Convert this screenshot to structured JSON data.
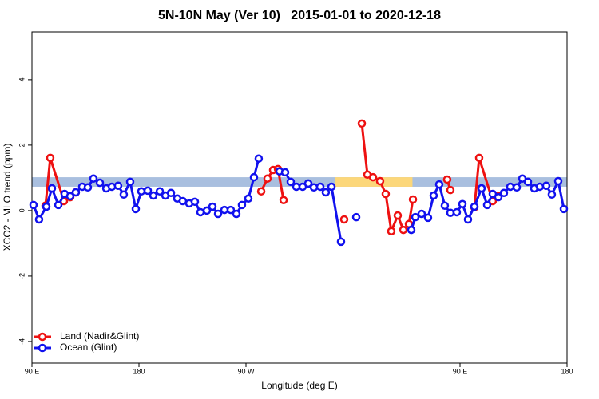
{
  "chart_data": {
    "type": "line",
    "title": "5N-10N May (Ver 10)   2015-01-01 to 2020-12-18",
    "x_label": "Longitude (deg E)",
    "y_label": "XCO2 - MLO trend (ppm)",
    "xlim": [
      90,
      540
    ],
    "ylim": [
      -4.66,
      5.46
    ],
    "xticks": [
      {
        "value": 90,
        "label": "90 E"
      },
      {
        "value": 180,
        "label": "180"
      },
      {
        "value": 270,
        "label": "90 W"
      },
      {
        "value": 450,
        "label": "90 E"
      },
      {
        "value": 540,
        "label": "180"
      }
    ],
    "yticks": [
      -4,
      -2,
      0,
      2,
      4
    ],
    "band_range": [
      0.73,
      1.02
    ],
    "band_color": "#a9bfdf",
    "band_highlight": [
      345,
      410
    ],
    "band_highlight_color": "#fcd77a",
    "legend": "bottom-left",
    "series": [
      {
        "name": "Land (Nadir&Glint)",
        "color": "#ee1111",
        "x": [
          101.4,
          105.4,
          116.9,
          122.2,
          126.9,
          200,
          282.8,
          288.1,
          292.8,
          296.9,
          301.6,
          330,
          352.6,
          360,
          367.4,
          372.1,
          376.8,
          382.8,
          387.5,
          392.2,
          397.6,
          402.3,
          407.0,
          410.4,
          425,
          439.2,
          441.9,
          450,
          462.1,
          466.1,
          477.5,
          482.2
        ],
        "values": [
          0.15,
          1.61,
          0.29,
          0.41,
          0.56,
          null,
          0.59,
          0.98,
          1.24,
          1.27,
          0.32,
          null,
          -0.27,
          null,
          2.66,
          1.1,
          1.02,
          0.9,
          0.51,
          -0.63,
          -0.15,
          -0.59,
          -0.41,
          0.34,
          null,
          0.95,
          0.63,
          null,
          0.1,
          1.61,
          0.29,
          0.44
        ]
      },
      {
        "name": "Ocean (Glint)",
        "color": "#1111ee",
        "x": [
          91.3,
          96.0,
          102.1,
          106.8,
          112.2,
          117.5,
          122.2,
          126.9,
          132.3,
          137.0,
          141.7,
          147.1,
          152.5,
          157.2,
          162.5,
          167.2,
          172.6,
          177.3,
          182.0,
          187.4,
          192.1,
          197.5,
          202.2,
          206.9,
          212.2,
          216.9,
          222.3,
          227.0,
          231.7,
          237.1,
          241.8,
          246.5,
          251.9,
          257.2,
          261.9,
          266.6,
          272.0,
          276.7,
          280.7,
          286,
          298.2,
          302.9,
          307.6,
          312.3,
          317.7,
          322.4,
          327.1,
          332.5,
          337.1,
          341.9,
          349.9,
          352,
          362.7,
          380,
          409.0,
          412.4,
          417.7,
          423.1,
          427.8,
          432.5,
          437.2,
          441.9,
          447.3,
          452.0,
          456.7,
          462.1,
          468.1,
          472.8,
          477.5,
          482.2,
          486.9,
          492.3,
          497.7,
          502.4,
          507.1,
          512.4,
          517.1,
          522.5,
          527.2,
          532.6,
          537.3
        ],
        "values": [
          0.17,
          -0.27,
          0.12,
          0.68,
          0.17,
          0.51,
          0.44,
          0.56,
          0.73,
          0.71,
          0.98,
          0.85,
          0.68,
          0.73,
          0.76,
          0.49,
          0.88,
          0.05,
          0.59,
          0.61,
          0.46,
          0.59,
          0.46,
          0.54,
          0.37,
          0.29,
          0.22,
          0.27,
          -0.05,
          0,
          0.12,
          -0.1,
          0.02,
          0.02,
          -0.1,
          0.17,
          0.37,
          1.02,
          1.59,
          null,
          1.2,
          1.17,
          0.88,
          0.73,
          0.73,
          0.83,
          0.71,
          0.73,
          0.56,
          0.73,
          -0.95,
          null,
          -0.2,
          null,
          -0.59,
          -0.2,
          -0.1,
          -0.22,
          0.46,
          0.8,
          0.15,
          -0.07,
          -0.05,
          0.2,
          -0.27,
          0.12,
          0.68,
          0.17,
          0.51,
          0.41,
          0.54,
          0.73,
          0.71,
          0.98,
          0.88,
          0.68,
          0.73,
          0.76,
          0.49,
          0.9,
          0.05
        ]
      }
    ]
  }
}
